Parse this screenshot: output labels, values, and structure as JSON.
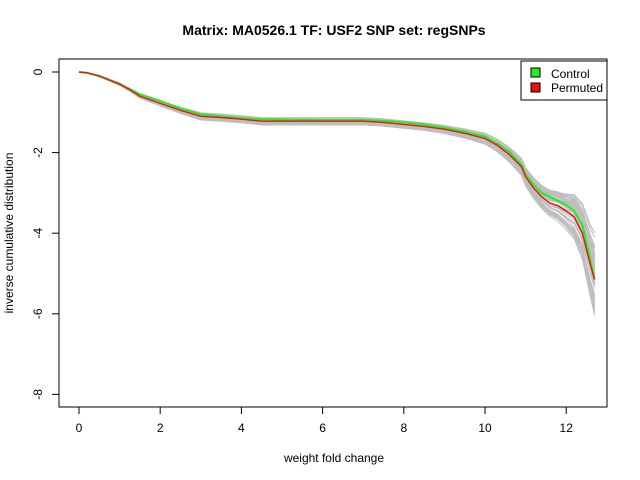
{
  "chart_data": {
    "type": "line",
    "title": "Matrix: MA0526.1 TF: USF2 SNP set: regSNPs",
    "xlabel": "weight fold change",
    "ylabel": "inverse cumulative distribution",
    "xlim": [
      0,
      12.7
    ],
    "ylim": [
      -8,
      0
    ],
    "x_ticks": [
      0,
      2,
      4,
      6,
      8,
      10,
      12
    ],
    "y_ticks": [
      0,
      -2,
      -4,
      -6,
      -8
    ],
    "grid": false,
    "legend_position": "top-right",
    "legend": [
      {
        "label": "Control",
        "color": "#22ee22"
      },
      {
        "label": "Permuted",
        "color": "#ee1111"
      }
    ],
    "colors": {
      "control": "#22ee22",
      "permuted": "#ee1111",
      "background_curves": "#bebebe",
      "overlap_line": "#8b5a00"
    },
    "series": [
      {
        "name": "Control",
        "x": [
          0,
          0.2,
          0.5,
          0.8,
          1.0,
          1.3,
          1.5,
          2.0,
          2.5,
          3.0,
          3.5,
          4.0,
          4.5,
          5.0,
          6.0,
          7.0,
          7.5,
          8.0,
          8.5,
          9.0,
          9.5,
          10.0,
          10.3,
          10.6,
          10.9,
          11.0,
          11.2,
          11.4,
          11.6,
          11.8,
          12.0,
          12.2,
          12.4,
          12.6,
          12.7
        ],
        "y": [
          0,
          -0.02,
          -0.1,
          -0.22,
          -0.3,
          -0.45,
          -0.55,
          -0.72,
          -0.9,
          -1.05,
          -1.1,
          -1.15,
          -1.17,
          -1.18,
          -1.19,
          -1.19,
          -1.21,
          -1.25,
          -1.3,
          -1.38,
          -1.48,
          -1.6,
          -1.78,
          -1.98,
          -2.3,
          -2.55,
          -2.8,
          -3.0,
          -3.1,
          -3.2,
          -3.3,
          -3.45,
          -3.8,
          -4.7,
          -5.15
        ]
      },
      {
        "name": "Permuted",
        "x": [
          0,
          0.2,
          0.5,
          0.8,
          1.0,
          1.3,
          1.5,
          2.0,
          2.5,
          3.0,
          3.5,
          4.0,
          4.5,
          5.0,
          6.0,
          7.0,
          7.5,
          8.0,
          8.5,
          9.0,
          9.5,
          10.0,
          10.3,
          10.6,
          10.9,
          11.0,
          11.2,
          11.4,
          11.6,
          11.8,
          12.0,
          12.2,
          12.4,
          12.6,
          12.7
        ],
        "y": [
          0,
          -0.02,
          -0.1,
          -0.22,
          -0.3,
          -0.47,
          -0.6,
          -0.78,
          -0.95,
          -1.1,
          -1.13,
          -1.17,
          -1.22,
          -1.22,
          -1.22,
          -1.22,
          -1.25,
          -1.3,
          -1.35,
          -1.42,
          -1.52,
          -1.65,
          -1.82,
          -2.05,
          -2.35,
          -2.6,
          -2.88,
          -3.1,
          -3.25,
          -3.32,
          -3.45,
          -3.6,
          -4.0,
          -4.8,
          -5.15
        ]
      }
    ]
  }
}
